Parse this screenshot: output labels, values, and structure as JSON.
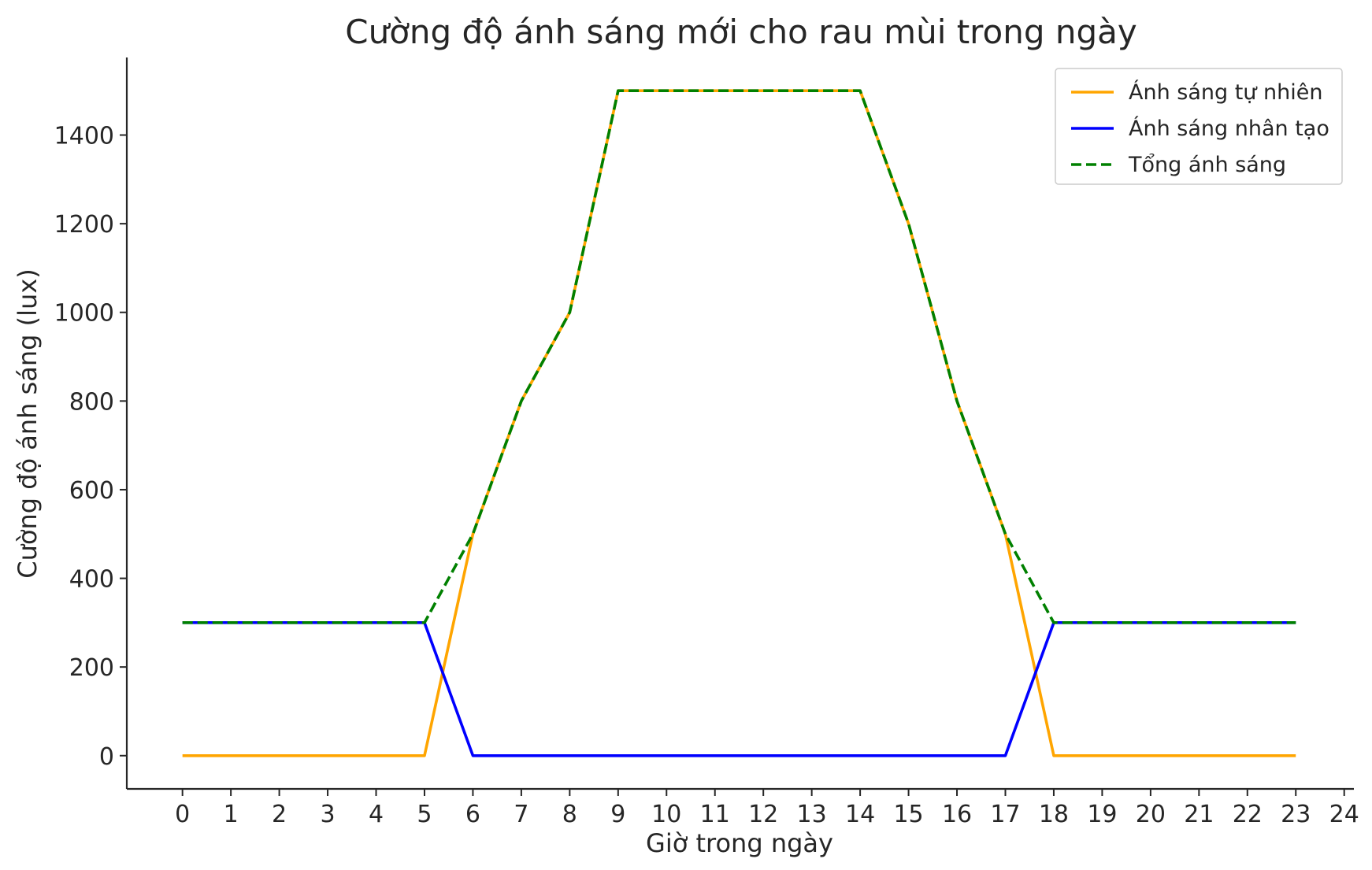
{
  "chart_data": {
    "type": "line",
    "title": "Cường độ ánh sáng mới cho rau mùi trong ngày",
    "xlabel": "Giờ trong ngày",
    "ylabel": "Cường độ ánh sáng (lux)",
    "x": [
      0,
      1,
      2,
      3,
      4,
      5,
      6,
      7,
      8,
      9,
      10,
      11,
      12,
      13,
      14,
      15,
      16,
      17,
      18,
      19,
      20,
      21,
      22,
      23
    ],
    "xlim": [
      -1.15,
      24.2
    ],
    "ylim": [
      -75,
      1575
    ],
    "xticks": [
      "0",
      "1",
      "2",
      "3",
      "4",
      "5",
      "6",
      "7",
      "8",
      "9",
      "10",
      "11",
      "12",
      "13",
      "14",
      "15",
      "16",
      "17",
      "18",
      "19",
      "20",
      "21",
      "22",
      "23",
      "24"
    ],
    "yticks": [
      "0",
      "200",
      "400",
      "600",
      "800",
      "1000",
      "1200",
      "1400"
    ],
    "grid": false,
    "legend_position": "top-right",
    "series": [
      {
        "name": "Ánh sáng tự nhiên",
        "color": "#ffa500",
        "dash": "solid",
        "values": [
          0,
          0,
          0,
          0,
          0,
          0,
          500,
          800,
          1000,
          1500,
          1500,
          1500,
          1500,
          1500,
          1500,
          1200,
          800,
          500,
          0,
          0,
          0,
          0,
          0,
          0
        ]
      },
      {
        "name": "Ánh sáng nhân tạo",
        "color": "#0000ff",
        "dash": "solid",
        "values": [
          300,
          300,
          300,
          300,
          300,
          300,
          0,
          0,
          0,
          0,
          0,
          0,
          0,
          0,
          0,
          0,
          0,
          0,
          300,
          300,
          300,
          300,
          300,
          300
        ]
      },
      {
        "name": "Tổng ánh sáng",
        "color": "#008000",
        "dash": "dashed",
        "values": [
          300,
          300,
          300,
          300,
          300,
          300,
          500,
          800,
          1000,
          1500,
          1500,
          1500,
          1500,
          1500,
          1500,
          1200,
          800,
          500,
          300,
          300,
          300,
          300,
          300,
          300
        ]
      }
    ]
  }
}
